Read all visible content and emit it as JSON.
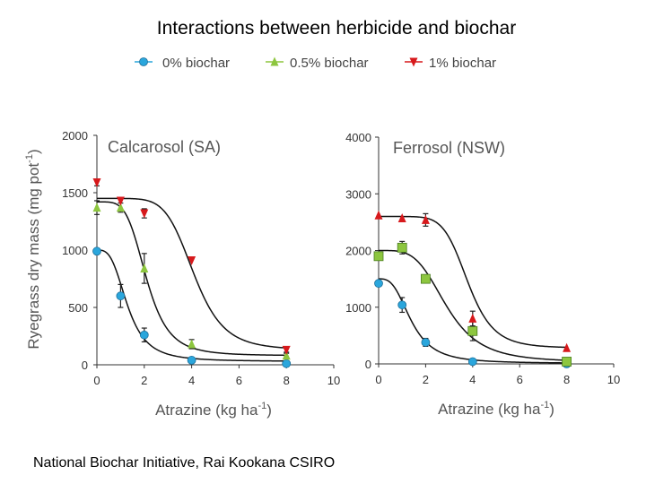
{
  "slide": {
    "title": "Interactions between herbicide and biochar",
    "footer": "National Biochar Initiative, Rai Kookana CSIRO"
  },
  "legend": [
    {
      "label": "0% biochar",
      "marker": "circle",
      "color": "#2aa6dc"
    },
    {
      "label": "0.5% biochar",
      "marker": "triangle-up",
      "color": "#8dc63f"
    },
    {
      "label": "1% biochar",
      "marker": "triangle-down",
      "color": "#d7191c"
    }
  ],
  "chart_data": [
    {
      "type": "scatter",
      "title": "Calcarosol (SA)",
      "xlabel": "Atrazine (kg ha",
      "xlabel_sup": "-1",
      "xlabel_end": ")",
      "ylabel": "Ryegrass dry mass (mg pot",
      "ylabel_sup": "-1",
      "ylabel_end": ")",
      "xlim": [
        0,
        10
      ],
      "ylim": [
        0,
        2000
      ],
      "xticks": [
        "0",
        "2",
        "4",
        "6",
        "8",
        "10"
      ],
      "yticks": [
        "0",
        "500",
        "1000",
        "1500",
        "2000"
      ],
      "series": [
        {
          "name": "0% biochar",
          "marker": "circle",
          "color": "#2aa6dc",
          "x": [
            0,
            1,
            2,
            4,
            8
          ],
          "y": [
            990,
            600,
            260,
            40,
            10
          ],
          "err": [
            0,
            100,
            60,
            20,
            10
          ],
          "fit": {
            "top": 1000,
            "bottom": 30,
            "ec50": 1.3,
            "slope": 3.2
          }
        },
        {
          "name": "0.5% biochar",
          "marker": "triangle-up",
          "color": "#8dc63f",
          "x": [
            0,
            1,
            2,
            4,
            8
          ],
          "y": [
            1370,
            1370,
            840,
            180,
            80
          ],
          "err": [
            60,
            40,
            130,
            40,
            20
          ],
          "fit": {
            "top": 1420,
            "bottom": 80,
            "ec50": 2.1,
            "slope": 4.5
          }
        },
        {
          "name": "1% biochar",
          "marker": "triangle-down",
          "color": "#d7191c",
          "x": [
            0,
            1,
            2,
            4,
            8
          ],
          "y": [
            1590,
            1430,
            1320,
            910,
            130
          ],
          "err": [
            30,
            0,
            40,
            0,
            20
          ],
          "fit": {
            "top": 1450,
            "bottom": 130,
            "ec50": 4.1,
            "slope": 6.5
          }
        }
      ]
    },
    {
      "type": "scatter",
      "title": "Ferrosol (NSW)",
      "xlabel": "Atrazine (kg ha",
      "xlabel_sup": "-1",
      "xlabel_end": ")",
      "xlim": [
        0,
        10
      ],
      "ylim": [
        0,
        4000
      ],
      "xticks": [
        "0",
        "2",
        "4",
        "6",
        "8",
        "10"
      ],
      "yticks": [
        "0",
        "1000",
        "2000",
        "3000",
        "4000"
      ],
      "series": [
        {
          "name": "0% biochar",
          "marker": "circle",
          "color": "#2aa6dc",
          "x": [
            0,
            1,
            2,
            4,
            8
          ],
          "y": [
            1420,
            1040,
            380,
            40,
            0
          ],
          "err": [
            0,
            130,
            70,
            20,
            0
          ],
          "fit": {
            "top": 1500,
            "bottom": 10,
            "ec50": 1.4,
            "slope": 3.0
          }
        },
        {
          "name": "0.5% biochar",
          "marker": "square",
          "color": "#8dc63f",
          "x": [
            0,
            1,
            2,
            4,
            8
          ],
          "y": [
            1900,
            2050,
            1500,
            580,
            40
          ],
          "err": [
            70,
            110,
            60,
            170,
            30
          ],
          "fit": {
            "top": 2000,
            "bottom": 30,
            "ec50": 2.9,
            "slope": 4.0
          }
        },
        {
          "name": "1% biochar",
          "marker": "triangle-up",
          "color": "#d7191c",
          "x": [
            0,
            1,
            2,
            4,
            8
          ],
          "y": [
            2620,
            2570,
            2540,
            800,
            280
          ],
          "err": [
            0,
            0,
            110,
            130,
            0
          ],
          "fit": {
            "top": 2600,
            "bottom": 280,
            "ec50": 3.8,
            "slope": 7.0
          }
        }
      ]
    }
  ]
}
